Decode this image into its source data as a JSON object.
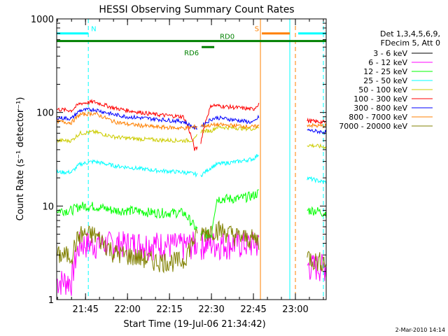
{
  "chart_data": {
    "type": "line",
    "title": "HESSI Observing Summary Count Rates",
    "xlabel": "Start Time (19-Jul-06 21:34:42)",
    "ylabel": "Count Rate (s⁻¹ detector⁻¹)",
    "y_scale": "log",
    "ylim": [
      1,
      1000
    ],
    "xlim": [
      "21:34:42",
      "23:11:00"
    ],
    "x_ticks": [
      "21:45",
      "22:00",
      "22:15",
      "22:30",
      "22:45",
      "23:00"
    ],
    "y_ticks": [
      "1",
      "10",
      "100",
      "1000"
    ],
    "grid": false,
    "legend_position": "right",
    "legend_header": [
      "Det 1,3,4,5,6,9,",
      "FDecim 5, Att 0"
    ],
    "footer_date": "2-Mar-2010 14:14",
    "data_gaps": [
      [
        "22:25",
        "22:26"
      ],
      [
        "22:47",
        "23:04"
      ]
    ],
    "annotations": [
      {
        "label": "N",
        "color": "#00ffff",
        "y": 700,
        "segments": [
          [
            "21:34:42",
            "21:46:00"
          ],
          [
            "23:01:00",
            "23:11:00"
          ]
        ]
      },
      {
        "label": "S",
        "color": "#ff8000",
        "y": 700,
        "segments": [
          [
            "22:48:00",
            "22:58:00"
          ]
        ]
      },
      {
        "label": "RD0",
        "color": "#008000",
        "y": 580,
        "segments": [
          [
            "21:34:42",
            "23:11:00"
          ]
        ]
      },
      {
        "label": "RD6",
        "color": "#008000",
        "y": 500,
        "segments": [
          [
            "22:26:30",
            "22:31:00"
          ]
        ]
      }
    ],
    "vertical_markers": [
      {
        "t": "21:34:42",
        "color": "#00ffff",
        "style": "solid"
      },
      {
        "t": "21:46:00",
        "color": "#00ffff",
        "style": "dashed"
      },
      {
        "t": "22:47:30",
        "color": "#ff8000",
        "style": "solid"
      },
      {
        "t": "22:58:00",
        "color": "#00ffff",
        "style": "solid"
      },
      {
        "t": "23:00:00",
        "color": "#ff8000",
        "style": "dashed"
      },
      {
        "t": "23:10:00",
        "color": "#00ffff",
        "style": "dashed"
      }
    ],
    "x": [
      "21:35",
      "21:40",
      "21:43",
      "21:48",
      "21:55",
      "22:00",
      "22:10",
      "22:20",
      "22:24",
      "22:26",
      "22:30",
      "22:32",
      "22:40",
      "22:45",
      "22:47",
      "23:04",
      "23:07",
      "23:10"
    ],
    "series": [
      {
        "name": "3 - 6 keV",
        "color": "#000000",
        "values": [
          null,
          null,
          null,
          null,
          null,
          null,
          null,
          null,
          null,
          null,
          null,
          null,
          null,
          null,
          null,
          null,
          null,
          null
        ]
      },
      {
        "name": "6 - 12 keV",
        "color": "#ff00ff",
        "values": [
          1.6,
          1.6,
          4,
          4,
          4,
          4,
          4,
          3.8,
          4,
          4,
          4,
          4,
          4,
          4,
          4,
          2.3,
          2.3,
          2.3
        ]
      },
      {
        "name": "12 - 25 keV",
        "color": "#00ff00",
        "values": [
          9,
          9,
          10,
          10,
          9,
          9,
          8.5,
          8.5,
          6,
          5,
          5,
          12,
          12,
          13,
          14,
          9,
          9,
          8.5
        ]
      },
      {
        "name": "25 - 50 keV",
        "color": "#00ffff",
        "values": [
          23,
          23,
          28,
          30,
          27,
          26,
          24,
          23,
          22,
          21,
          26,
          28,
          30,
          32,
          36,
          20,
          19,
          18
        ]
      },
      {
        "name": "50 - 100 keV",
        "color": "#cccc00",
        "values": [
          50,
          50,
          60,
          62,
          55,
          53,
          51,
          50,
          51,
          63,
          64,
          70,
          68,
          67,
          70,
          45,
          44,
          43
        ]
      },
      {
        "name": "100 - 300 keV",
        "color": "#ff0000",
        "values": [
          108,
          105,
          125,
          130,
          112,
          105,
          95,
          90,
          40,
          44,
          120,
          118,
          112,
          108,
          125,
          82,
          80,
          79
        ]
      },
      {
        "name": "300 - 800 keV",
        "color": "#0000ff",
        "values": [
          88,
          86,
          105,
          108,
          95,
          90,
          85,
          80,
          68,
          70,
          85,
          88,
          82,
          78,
          90,
          65,
          63,
          62
        ]
      },
      {
        "name": "800 - 7000 keV",
        "color": "#ff8000",
        "values": [
          80,
          78,
          95,
          98,
          80,
          75,
          70,
          68,
          70,
          72,
          73,
          74,
          72,
          70,
          72,
          74,
          72,
          72
        ]
      },
      {
        "name": "7000 - 20000 keV",
        "color": "#808000",
        "values": [
          3,
          3,
          5,
          5,
          3.2,
          3,
          2.6,
          2.6,
          4.5,
          5,
          5.6,
          5.7,
          4.7,
          4.5,
          4.4,
          3,
          2.6,
          2.6
        ]
      }
    ]
  }
}
